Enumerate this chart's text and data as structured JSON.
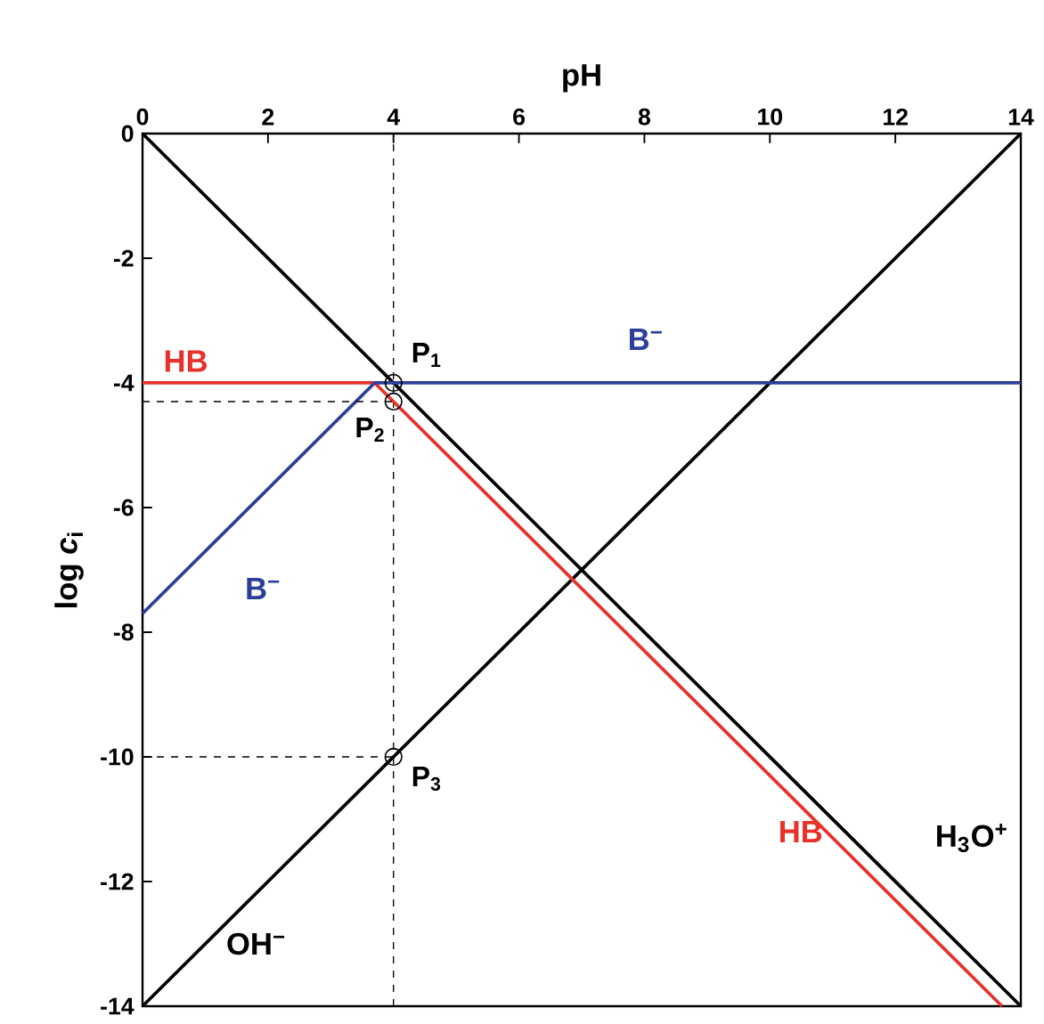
{
  "chart_data": {
    "type": "line",
    "xlabel": "pH",
    "ylabel": "log *c*$_{i}$",
    "xlim": [
      0,
      14
    ],
    "ylim": [
      -14,
      0
    ],
    "xticks": [
      0,
      2,
      4,
      6,
      8,
      10,
      12,
      14
    ],
    "yticks": [
      -14,
      -12,
      -10,
      -8,
      -6,
      -4,
      -2,
      0
    ],
    "series": [
      {
        "name": "H$_{3}$O$^{+}$",
        "color": "#000000",
        "x": [
          0,
          14
        ],
        "values": [
          0,
          -14
        ]
      },
      {
        "name": "OH$^{−}$",
        "color": "#000000",
        "x": [
          0,
          14
        ],
        "values": [
          -14,
          0
        ]
      },
      {
        "name": "HB",
        "color": "#e8312a",
        "x": [
          0,
          3.7,
          4,
          13.7
        ],
        "values": [
          -4,
          -4,
          -4.3,
          -14
        ]
      },
      {
        "name": "B$^{−}$",
        "color": "#2e3f98",
        "x": [
          0,
          3.7,
          4.3,
          14
        ],
        "values": [
          -7.7,
          -4,
          -4,
          -4
        ]
      },
      {
        "type": "line",
        "color": "#000000",
        "line_style": "dashed",
        "x": [
          0,
          4
        ],
        "values": [
          -4.3,
          -4.3
        ]
      },
      {
        "type": "line",
        "color": "#000000",
        "line_style": "dashed",
        "x": [
          0,
          4
        ],
        "values": [
          -10,
          -10
        ]
      },
      {
        "type": "scatter",
        "color": "#000000",
        "marker": "circle",
        "x": [
          4,
          4,
          4
        ],
        "values": [
          -4,
          -4.3,
          -10
        ]
      }
    ],
    "ref_lines": [
      {
        "axis": "x",
        "value": 4,
        "color": "#000000",
        "line_style": "dashed"
      }
    ],
    "annotations": [
      "P$_{1}$",
      "P$_{2}$",
      "P$_{3}$",
      "HB",
      "B$^{−}$"
    ]
  }
}
